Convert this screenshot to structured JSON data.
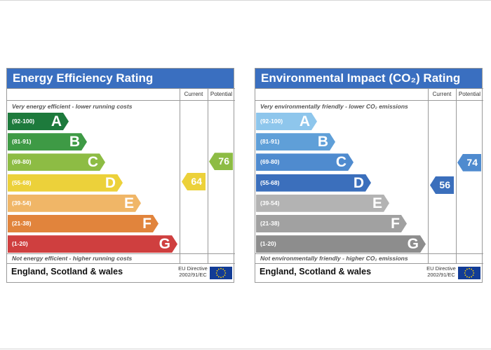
{
  "panels": [
    {
      "title": "Energy Efficiency Rating",
      "col_current": "Current",
      "col_potential": "Potential",
      "top_note": "Very energy efficient - lower running costs",
      "bottom_note": "Not energy efficient - higher running costs",
      "footer_region": "England, Scotland & wales",
      "directive_line1": "EU Directive",
      "directive_line2": "2002/91/EC",
      "flag_icon": "eu-flag-icon"
    },
    {
      "title": "Environmental Impact (CO₂) Rating",
      "col_current": "Current",
      "col_potential": "Potential",
      "top_note": "Very environmentally friendly - lower CO₂ emissions",
      "bottom_note": "Not environmentally friendly - higher CO₂ emissions",
      "footer_region": "England, Scotland & wales",
      "directive_line1": "EU Directive",
      "directive_line2": "2002/91/EC",
      "flag_icon": "eu-flag-icon"
    }
  ],
  "chart_data": [
    {
      "type": "bar",
      "categories": [
        "A",
        "B",
        "C",
        "D",
        "E",
        "F",
        "G"
      ],
      "ranges": [
        "(92-100)",
        "(81-91)",
        "(69-80)",
        "(55-68)",
        "(39-54)",
        "(21-38)",
        "(1-20)"
      ],
      "band_bounds": [
        [
          92,
          100
        ],
        [
          81,
          91
        ],
        [
          69,
          80
        ],
        [
          55,
          68
        ],
        [
          39,
          54
        ],
        [
          21,
          38
        ],
        [
          1,
          20
        ]
      ],
      "colors": [
        "#1d7a3c",
        "#3e9a45",
        "#8dbc44",
        "#ecd13a",
        "#f0b667",
        "#e1843c",
        "#cf3f3f"
      ],
      "current": {
        "value": 64,
        "band": "D",
        "color": "#ecd13a"
      },
      "potential": {
        "value": 76,
        "band": "C",
        "color": "#8dbc44"
      }
    },
    {
      "type": "bar",
      "categories": [
        "A",
        "B",
        "C",
        "D",
        "E",
        "F",
        "G"
      ],
      "ranges": [
        "(92-100)",
        "(81-91)",
        "(69-80)",
        "(55-68)",
        "(39-54)",
        "(21-38)",
        "(1-20)"
      ],
      "band_bounds": [
        [
          92,
          100
        ],
        [
          81,
          91
        ],
        [
          69,
          80
        ],
        [
          55,
          68
        ],
        [
          39,
          54
        ],
        [
          21,
          38
        ],
        [
          1,
          20
        ]
      ],
      "colors": [
        "#8ec6ec",
        "#5f9fd8",
        "#4f8bcf",
        "#3b6fbc",
        "#b3b3b3",
        "#a1a1a1",
        "#8d8d8d"
      ],
      "current": {
        "value": 56,
        "band": "D",
        "color": "#3b6fbc"
      },
      "potential": {
        "value": 74,
        "band": "C",
        "color": "#4f8bcf"
      }
    }
  ]
}
